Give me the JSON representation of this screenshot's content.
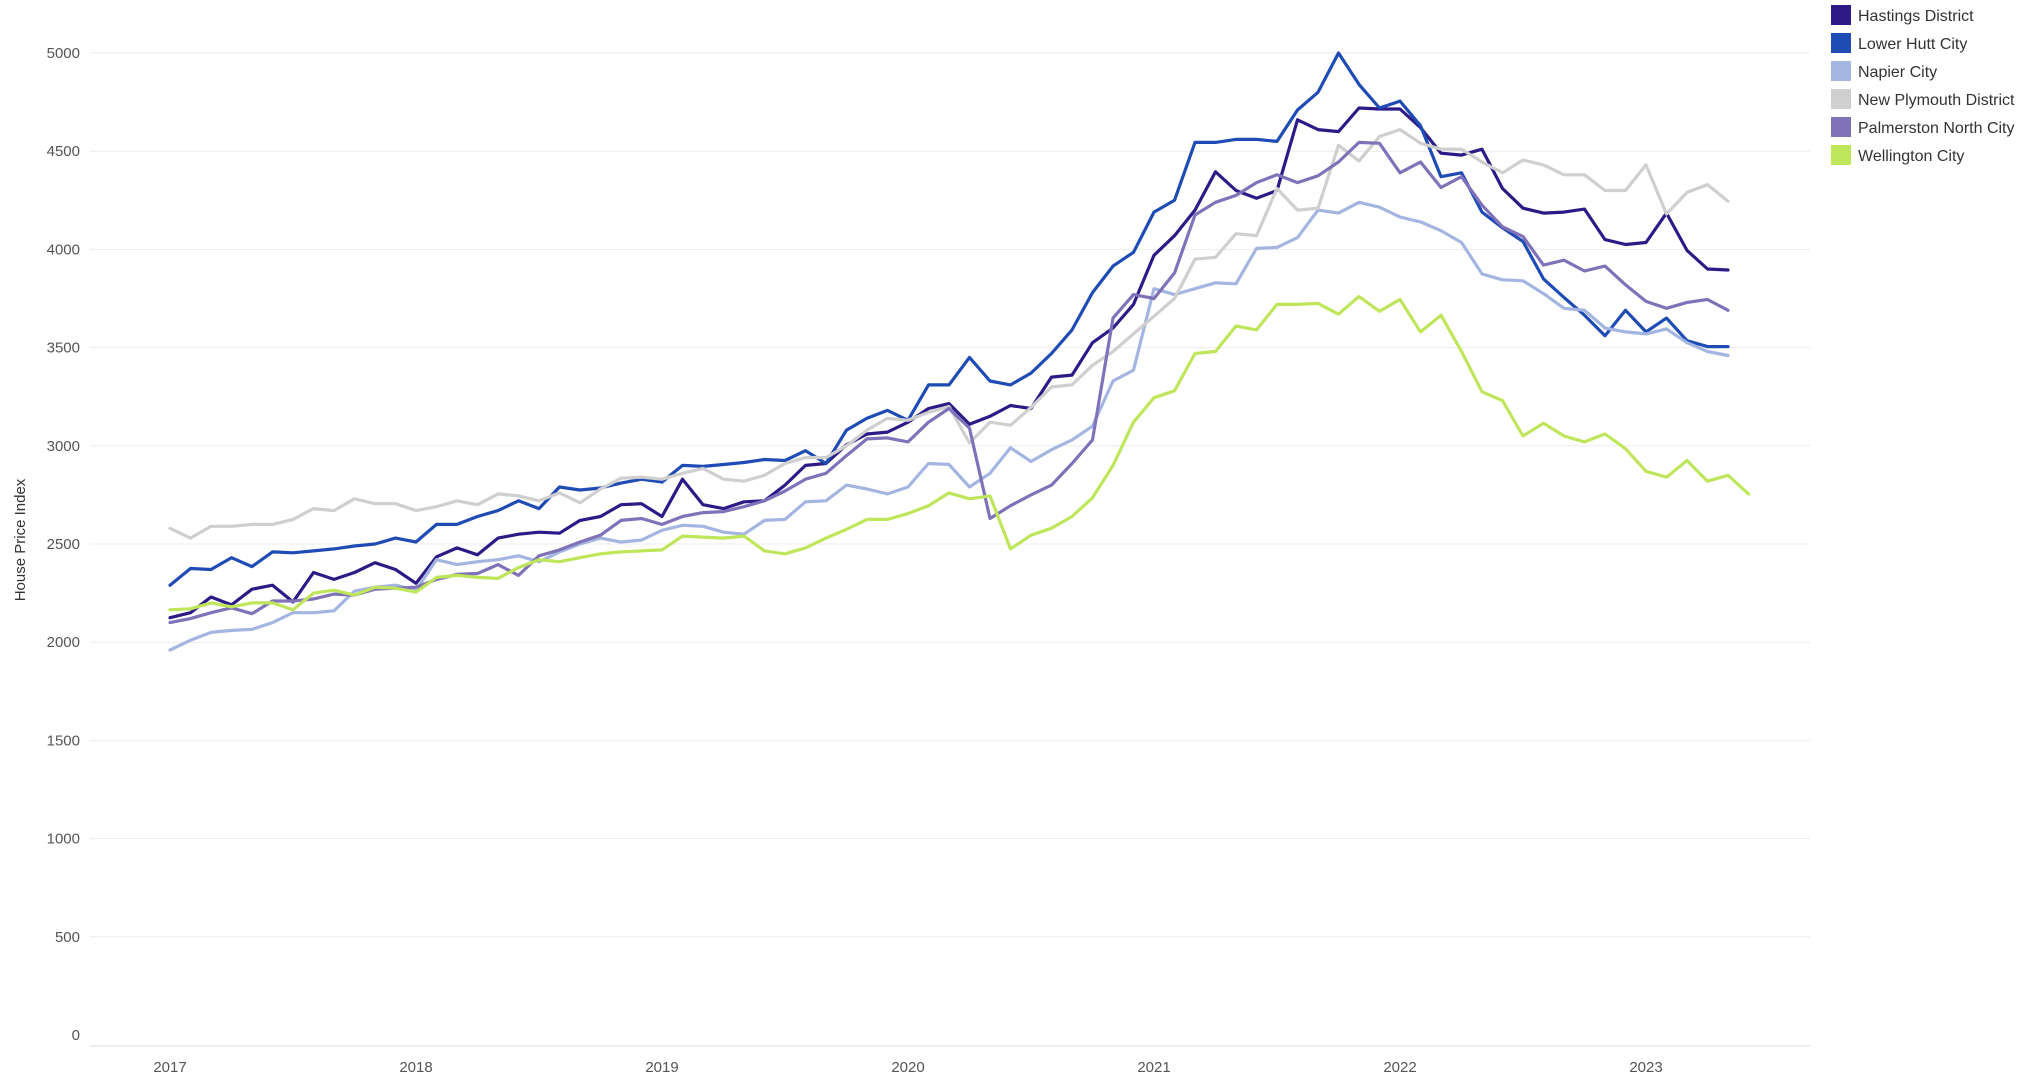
{
  "chart_data": {
    "type": "line",
    "title": "",
    "xlabel": "",
    "ylabel": "House Price Index",
    "ylim": [
      0,
      5000
    ],
    "yticks": [
      0,
      500,
      1000,
      1500,
      2000,
      2500,
      3000,
      3500,
      4000,
      4500,
      5000
    ],
    "xticks": [
      "2017",
      "2018",
      "2019",
      "2020",
      "2021",
      "2022",
      "2023"
    ],
    "x_start": 2017.0,
    "x_step_months": 1,
    "grid": "horizontal",
    "legend_position": "top-right",
    "series": [
      {
        "name": "Hastings District",
        "color": "#2e1a87",
        "values": [
          2125,
          2150,
          2230,
          2190,
          2270,
          2290,
          2205,
          2355,
          2320,
          2355,
          2405,
          2370,
          2300,
          2435,
          2480,
          2445,
          2530,
          2550,
          2560,
          2555,
          2620,
          2640,
          2700,
          2705,
          2640,
          2830,
          2700,
          2680,
          2715,
          2720,
          2800,
          2900,
          2910,
          3005,
          3060,
          3070,
          3120,
          3190,
          3215,
          3110,
          3150,
          3205,
          3190,
          3350,
          3360,
          3525,
          3600,
          3720,
          3970,
          4070,
          4200,
          4395,
          4300,
          4260,
          4300,
          4660,
          4610,
          4600,
          4720,
          4715,
          4715,
          4620,
          4490,
          4480,
          4510,
          4310,
          4210,
          4185,
          4190,
          4205,
          4050,
          4025,
          4035,
          4185,
          3995,
          3900,
          3895
        ]
      },
      {
        "name": "Lower Hutt City",
        "color": "#1f4bb5",
        "values": [
          2290,
          2375,
          2370,
          2430,
          2385,
          2460,
          2455,
          2465,
          2475,
          2490,
          2500,
          2530,
          2510,
          2600,
          2600,
          2640,
          2670,
          2720,
          2680,
          2790,
          2775,
          2785,
          2810,
          2830,
          2815,
          2900,
          2895,
          2905,
          2915,
          2930,
          2925,
          2975,
          2910,
          3080,
          3140,
          3180,
          3130,
          3310,
          3310,
          3450,
          3330,
          3310,
          3370,
          3470,
          3590,
          3780,
          3915,
          3985,
          4190,
          4250,
          4545,
          4545,
          4560,
          4560,
          4550,
          4710,
          4800,
          5000,
          4840,
          4720,
          4755,
          4630,
          4370,
          4390,
          4190,
          4110,
          4040,
          3850,
          3755,
          3665,
          3560,
          3690,
          3580,
          3650,
          3535,
          3505,
          3505
        ]
      },
      {
        "name": "Napier City",
        "color": "#a3b5e0",
        "values": [
          1960,
          2010,
          2050,
          2060,
          2065,
          2100,
          2150,
          2150,
          2160,
          2260,
          2280,
          2290,
          2265,
          2420,
          2395,
          2410,
          2420,
          2440,
          2410,
          2460,
          2500,
          2530,
          2510,
          2520,
          2570,
          2595,
          2590,
          2560,
          2550,
          2620,
          2625,
          2715,
          2720,
          2800,
          2780,
          2755,
          2790,
          2910,
          2905,
          2790,
          2860,
          2990,
          2920,
          2980,
          3030,
          3100,
          3330,
          3385,
          3800,
          3770,
          3800,
          3830,
          3825,
          4005,
          4010,
          4060,
          4200,
          4185,
          4240,
          4215,
          4165,
          4140,
          4095,
          4035,
          3875,
          3845,
          3840,
          3775,
          3700,
          3690,
          3600,
          3580,
          3570,
          3595,
          3525,
          3480,
          3460
        ]
      },
      {
        "name": "New Plymouth District",
        "color": "#cfcfcf",
        "values": [
          2580,
          2530,
          2590,
          2590,
          2600,
          2600,
          2625,
          2680,
          2670,
          2730,
          2705,
          2705,
          2670,
          2690,
          2720,
          2700,
          2755,
          2745,
          2720,
          2760,
          2710,
          2780,
          2835,
          2840,
          2830,
          2860,
          2885,
          2830,
          2820,
          2850,
          2910,
          2940,
          2940,
          3000,
          3080,
          3140,
          3130,
          3170,
          3200,
          3015,
          3120,
          3105,
          3195,
          3300,
          3310,
          3410,
          3480,
          3570,
          3660,
          3750,
          3950,
          3960,
          4080,
          4070,
          4310,
          4200,
          4210,
          4530,
          4450,
          4575,
          4610,
          4540,
          4510,
          4510,
          4445,
          4390,
          4455,
          4430,
          4380,
          4380,
          4300,
          4300,
          4430,
          4180,
          4290,
          4330,
          4245
        ]
      },
      {
        "name": "Palmerston North City",
        "color": "#8072b8",
        "values": [
          2100,
          2120,
          2150,
          2175,
          2145,
          2210,
          2210,
          2220,
          2245,
          2240,
          2270,
          2275,
          2280,
          2320,
          2345,
          2350,
          2395,
          2340,
          2440,
          2470,
          2510,
          2545,
          2620,
          2630,
          2600,
          2640,
          2660,
          2665,
          2690,
          2720,
          2770,
          2830,
          2860,
          2950,
          3035,
          3040,
          3020,
          3120,
          3190,
          3090,
          2630,
          2695,
          2750,
          2800,
          2910,
          3030,
          3650,
          3770,
          3750,
          3880,
          4175,
          4240,
          4275,
          4340,
          4380,
          4340,
          4375,
          4445,
          4545,
          4540,
          4390,
          4445,
          4315,
          4370,
          4225,
          4115,
          4065,
          3920,
          3945,
          3890,
          3915,
          3820,
          3735,
          3700,
          3730,
          3745,
          3690
        ]
      },
      {
        "name": "Wellington City",
        "color": "#bfe65a",
        "values": [
          2165,
          2170,
          2200,
          2180,
          2200,
          2200,
          2165,
          2250,
          2265,
          2240,
          2280,
          2275,
          2255,
          2330,
          2340,
          2330,
          2325,
          2380,
          2420,
          2410,
          2430,
          2450,
          2460,
          2465,
          2470,
          2540,
          2535,
          2530,
          2540,
          2465,
          2450,
          2480,
          2530,
          2575,
          2625,
          2625,
          2655,
          2695,
          2760,
          2730,
          2745,
          2475,
          2545,
          2580,
          2640,
          2735,
          2900,
          3120,
          3245,
          3280,
          3470,
          3480,
          3610,
          3590,
          3720,
          3720,
          3725,
          3670,
          3760,
          3685,
          3745,
          3580,
          3665,
          3480,
          3275,
          3230,
          3050,
          3115,
          3050,
          3020,
          3060,
          2985,
          2870,
          2840,
          2925,
          2820,
          2850,
          2755
        ]
      }
    ]
  }
}
